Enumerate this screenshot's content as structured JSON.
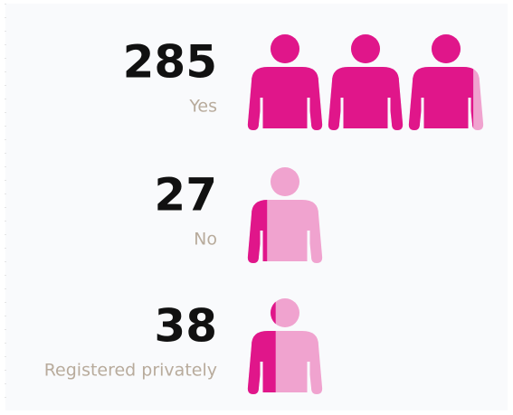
{
  "chart_data": {
    "type": "pictogram",
    "categories": [
      "Yes",
      "No",
      "Registered privately"
    ],
    "values": [
      285,
      27,
      38
    ],
    "icon_value": 100,
    "color": "#e0168a",
    "empty_color": "#f0a3cf"
  }
}
